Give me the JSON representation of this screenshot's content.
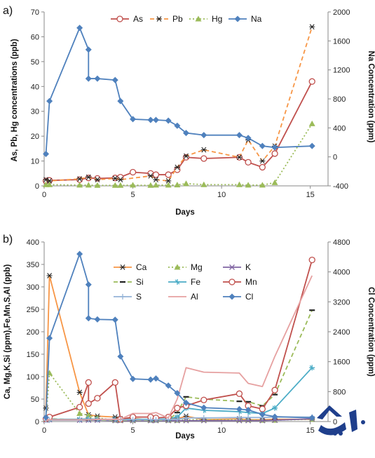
{
  "chart_data": [
    {
      "type": "line",
      "panel_label": "a)",
      "xlabel": "Days",
      "ylabel": "As, Pb, Hg concentrations (ppb)",
      "y2label": "Na Concentration (ppm)",
      "xlim": [
        0,
        16
      ],
      "ylim": [
        0,
        70
      ],
      "y2lim": [
        -400,
        2000
      ],
      "xticks": [
        "0",
        "5",
        "10",
        "15"
      ],
      "xtick_values": [
        0,
        5,
        10,
        15
      ],
      "yticks": [
        "0",
        "10",
        "20",
        "30",
        "40",
        "50",
        "60",
        "70"
      ],
      "ytick_values": [
        0,
        10,
        20,
        30,
        40,
        50,
        60,
        70
      ],
      "y2ticks": [
        "-400",
        "0",
        "400",
        "800",
        "1200",
        "1600",
        "2000"
      ],
      "y2tick_values": [
        -400,
        0,
        400,
        800,
        1200,
        1600,
        2000
      ],
      "legend_position": "top",
      "series": [
        {
          "name": "As",
          "axis": "left",
          "color": "#c0504d",
          "marker": "circle",
          "dash": "solid",
          "x": [
            0.1,
            0.3,
            2,
            2.5,
            3,
            4,
            4.3,
            5,
            6,
            6.3,
            7,
            7.5,
            8,
            9,
            11,
            11.5,
            12.3,
            13,
            15.1
          ],
          "y": [
            2,
            2.2,
            2.5,
            3.2,
            3,
            3.2,
            3.5,
            5.5,
            5,
            4.5,
            4.5,
            6.5,
            11.5,
            11,
            11.5,
            9.5,
            7.5,
            13,
            42
          ]
        },
        {
          "name": "Pb",
          "axis": "left",
          "color": "#f79646",
          "marker": "asterisk",
          "dash": "dash",
          "x": [
            0.1,
            0.3,
            2,
            2.5,
            3,
            4,
            4.3,
            6,
            6.3,
            7,
            7.5,
            8,
            9,
            11,
            11.5,
            12.3,
            13,
            15.1
          ],
          "y": [
            2.5,
            2,
            2.8,
            3.5,
            2.5,
            3,
            2.5,
            4,
            2.5,
            2,
            7.5,
            12,
            14.5,
            11.5,
            18.5,
            10,
            16,
            64
          ]
        },
        {
          "name": "Hg",
          "axis": "left",
          "color": "#9bbb59",
          "marker": "triangle",
          "dash": "dot",
          "x": [
            0.1,
            0.3,
            2,
            2.5,
            3,
            4,
            4.3,
            5,
            6,
            6.3,
            7,
            7.5,
            8,
            9,
            11,
            11.5,
            12.3,
            13,
            15.1
          ],
          "y": [
            0.5,
            0.5,
            0.3,
            0.3,
            0.2,
            0.2,
            0.2,
            0.3,
            0.2,
            0.3,
            0.3,
            0.4,
            0.9,
            0.5,
            0.5,
            0.3,
            0.3,
            1.3,
            25
          ]
        },
        {
          "name": "Na",
          "axis": "right",
          "color": "#4f81bd",
          "marker": "diamond",
          "dash": "solid",
          "x": [
            0.1,
            0.3,
            2,
            2.5,
            2.5,
            3,
            4,
            4.3,
            5,
            6,
            6.3,
            7,
            7.5,
            8,
            9,
            11,
            11.5,
            12.3,
            13,
            15.1
          ],
          "y": [
            40,
            770,
            1780,
            1480,
            1080,
            1080,
            1060,
            770,
            520,
            510,
            510,
            500,
            430,
            330,
            300,
            300,
            260,
            150,
            130,
            150
          ]
        }
      ]
    },
    {
      "type": "line",
      "panel_label": "b)",
      "xlabel": "Days",
      "ylabel": "Ca, Mg,K,Si (ppm),Fe,Mn,S,Al (ppb)",
      "y2label": "Cl Concentration (ppm)",
      "xlim": [
        0,
        16
      ],
      "ylim": [
        0,
        400
      ],
      "y2lim": [
        0,
        4800
      ],
      "xticks": [
        "0",
        "5",
        "10",
        "15"
      ],
      "xtick_values": [
        0,
        5,
        10,
        15
      ],
      "yticks": [
        "0",
        "50",
        "100",
        "150",
        "200",
        "250",
        "300",
        "350",
        "400"
      ],
      "ytick_values": [
        0,
        50,
        100,
        150,
        200,
        250,
        300,
        350,
        400
      ],
      "y2ticks": [
        "0",
        "800",
        "1600",
        "2400",
        "3200",
        "4000",
        "4800"
      ],
      "y2tick_values": [
        0,
        800,
        1600,
        2400,
        3200,
        4000,
        4800
      ],
      "legend_position": "upper-center",
      "series": [
        {
          "name": "Ca",
          "axis": "left",
          "color": "#f79646",
          "marker": "asterisk",
          "dash": "solid",
          "x": [
            0.1,
            0.3,
            2,
            2.5,
            3,
            4,
            4.3,
            5,
            6,
            6.3,
            7,
            7.5,
            8,
            9,
            11,
            11.5,
            12.3,
            13,
            15.1
          ],
          "y": [
            30,
            325,
            65,
            15,
            12,
            10,
            6,
            7,
            3,
            4,
            6,
            6,
            12,
            4,
            6,
            4,
            4,
            5,
            5
          ]
        },
        {
          "name": "Mg",
          "axis": "left",
          "color": "#9bbb59",
          "marker": "triangle",
          "dash": "dot",
          "x": [
            0.1,
            0.3,
            2,
            2.5,
            3,
            4,
            4.3,
            5,
            6,
            6.3,
            7,
            7.5,
            8,
            9,
            11,
            11.5,
            12.3,
            13,
            15.1
          ],
          "y": [
            5,
            108,
            18,
            14,
            8,
            3,
            3,
            3,
            3,
            3,
            3,
            3,
            4,
            4,
            4,
            4,
            3,
            3,
            5
          ]
        },
        {
          "name": "K",
          "axis": "left",
          "color": "#8064a2",
          "marker": "x",
          "dash": "solid",
          "x": [
            0.1,
            0.3,
            2,
            2.5,
            3,
            4,
            4.3,
            5,
            6,
            6.3,
            7,
            7.5,
            8,
            9,
            11,
            11.5,
            12.3,
            13,
            15.1
          ],
          "y": [
            3,
            4,
            3,
            3,
            3,
            2,
            2,
            2,
            2,
            2,
            2,
            2,
            2,
            2,
            2,
            2,
            2,
            3,
            6
          ]
        },
        {
          "name": "Si",
          "axis": "left",
          "color": "#9bbb59",
          "marker": "dash",
          "dash": "dash",
          "x": [
            0.1,
            0.3,
            2,
            2.5,
            3,
            4,
            4.3,
            5,
            6,
            6.3,
            7,
            7.5,
            8,
            9,
            11,
            11.5,
            12.3,
            13,
            15.1
          ],
          "y": [
            4,
            6,
            4,
            3,
            3,
            3,
            3,
            3,
            3,
            3,
            3,
            20,
            55,
            50,
            45,
            44,
            35,
            60,
            248
          ]
        },
        {
          "name": "Fe",
          "axis": "left",
          "color": "#4bacc6",
          "marker": "star",
          "dash": "solid",
          "x": [
            0.1,
            0.3,
            2,
            2.5,
            3,
            4,
            4.3,
            5,
            6,
            6.3,
            7,
            7.5,
            8,
            9,
            11,
            11.5,
            12.3,
            13,
            15.1
          ],
          "y": [
            4,
            5,
            5,
            6,
            5,
            5,
            5,
            5,
            5,
            5,
            6,
            10,
            30,
            25,
            22,
            20,
            18,
            30,
            120
          ]
        },
        {
          "name": "Mn",
          "axis": "left",
          "color": "#c0504d",
          "marker": "circle",
          "dash": "solid",
          "x": [
            0.1,
            0.3,
            2,
            2.5,
            2.5,
            3,
            4,
            4.3,
            5,
            6,
            6.3,
            7,
            7.5,
            8,
            9,
            11,
            11.5,
            12.3,
            13,
            15.1
          ],
          "y": [
            6,
            10,
            32,
            87,
            40,
            52,
            87,
            5,
            10,
            10,
            8,
            10,
            30,
            35,
            48,
            62,
            35,
            28,
            70,
            360
          ]
        },
        {
          "name": "S",
          "axis": "left",
          "color": "#95b3d7",
          "marker": "plus",
          "dash": "solid",
          "x": [
            0.1,
            0.3,
            2,
            2.5,
            3,
            4,
            4.3,
            5,
            6,
            6.3,
            7,
            7.5,
            8,
            9,
            11,
            11.5,
            12.3,
            13,
            15.1
          ],
          "y": [
            3,
            3,
            3,
            4,
            4,
            4,
            4,
            4,
            4,
            4,
            4,
            5,
            8,
            8,
            9,
            9,
            9,
            10,
            10
          ]
        },
        {
          "name": "Al",
          "axis": "left",
          "color": "#e6a0a0",
          "marker": "none",
          "dash": "solid",
          "x": [
            0.1,
            0.3,
            2,
            2.5,
            3,
            4,
            4.3,
            5,
            6,
            6.3,
            7,
            7.5,
            8,
            9,
            11,
            11.5,
            12.3,
            13,
            15.1
          ],
          "y": [
            3,
            4,
            4,
            4,
            5,
            5,
            5,
            18,
            18,
            20,
            8,
            50,
            120,
            110,
            108,
            85,
            78,
            145,
            325
          ]
        },
        {
          "name": "Cl",
          "axis": "right",
          "color": "#4f81bd",
          "marker": "diamond",
          "dash": "solid",
          "x": [
            0.1,
            0.3,
            2,
            2.5,
            2.5,
            3,
            4,
            4.3,
            5,
            6,
            6.3,
            7,
            7.5,
            8,
            9,
            11,
            11.5,
            12.3,
            13,
            15.1
          ],
          "y": [
            110,
            2230,
            4480,
            3660,
            2760,
            2730,
            2720,
            1740,
            1140,
            1120,
            1150,
            960,
            760,
            500,
            370,
            330,
            310,
            190,
            130,
            100
          ]
        }
      ]
    }
  ]
}
